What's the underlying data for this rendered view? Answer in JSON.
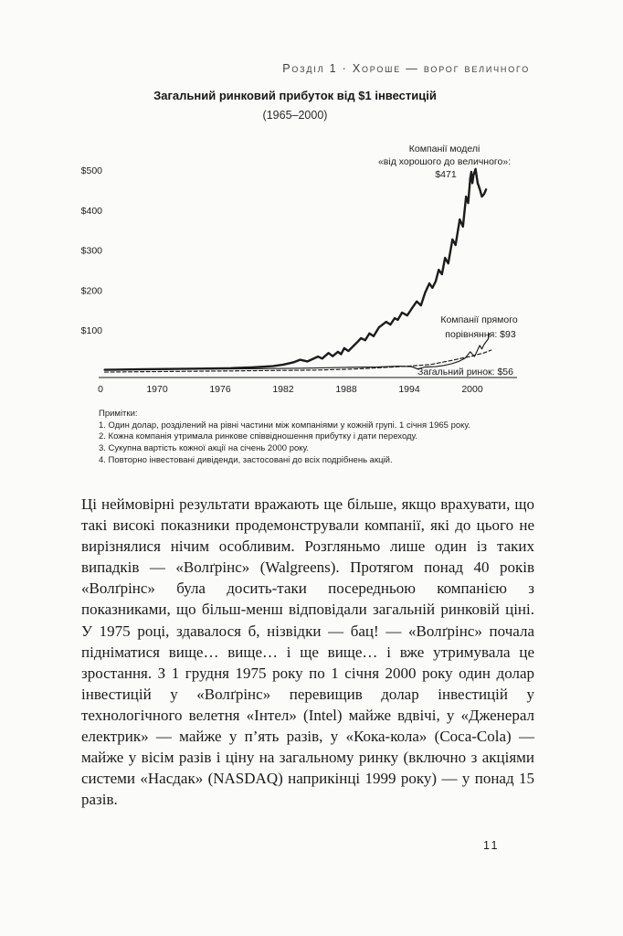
{
  "page": {
    "running_head": "Розділ 1 · Хороше — ворог величного",
    "page_number": "11"
  },
  "chart": {
    "title": "Загальний ринковий прибуток від $1 інвестицій",
    "subtitle": "(1965–2000)",
    "y_ticks": [
      "$500",
      "$400",
      "$300",
      "$200",
      "$100"
    ],
    "x_ticks": [
      "0",
      "1970",
      "1976",
      "1982",
      "1988",
      "1994",
      "2000"
    ],
    "annotations": {
      "g2g_line1": "Компанії моделі",
      "g2g_line2": "«від хорошого до величного»:",
      "g2g_line3": "$471",
      "comparison_line1": "Компанії прямого",
      "comparison_line2": "порівняння: $93",
      "market_label": "Загальний ринок: $56"
    }
  },
  "chart_data": {
    "type": "line",
    "title": "Загальний ринковий прибуток від $1 інвестицій",
    "subtitle": "(1965–2000)",
    "xlabel": "",
    "ylabel": "",
    "xlim": [
      1965,
      2000
    ],
    "ylim": [
      0,
      500
    ],
    "grid": false,
    "legend_position": "inline annotations at line ends",
    "x_tick_labels": [
      "0",
      "1970",
      "1976",
      "1982",
      "1988",
      "1994",
      "2000"
    ],
    "y_tick_labels": [
      "$500",
      "$400",
      "$300",
      "$200",
      "$100"
    ],
    "end_values": {
      "good_to_great": 471,
      "direct_comparison": 93,
      "general_market": 56
    },
    "series": [
      {
        "name": "Компанії моделі «від хорошого до величного»",
        "style": "bold-solid",
        "end_value": 471,
        "points": [
          [
            1965,
            1
          ],
          [
            1968,
            2
          ],
          [
            1971,
            3
          ],
          [
            1974,
            4
          ],
          [
            1977,
            5
          ],
          [
            1979,
            7
          ],
          [
            1981,
            10
          ],
          [
            1982,
            14
          ],
          [
            1983,
            20
          ],
          [
            1983.6,
            26
          ],
          [
            1984.3,
            22
          ],
          [
            1985.3,
            34
          ],
          [
            1985.7,
            29
          ],
          [
            1986.3,
            43
          ],
          [
            1986.7,
            35
          ],
          [
            1987.2,
            46
          ],
          [
            1987.5,
            40
          ],
          [
            1987.8,
            55
          ],
          [
            1988.2,
            48
          ],
          [
            1989,
            69
          ],
          [
            1989.4,
            80
          ],
          [
            1989.8,
            75
          ],
          [
            1990.2,
            92
          ],
          [
            1990.6,
            85
          ],
          [
            1991.1,
            107
          ],
          [
            1991.8,
            121
          ],
          [
            1992.2,
            114
          ],
          [
            1992.6,
            130
          ],
          [
            1992.9,
            126
          ],
          [
            1993.3,
            144
          ],
          [
            1993.8,
            137
          ],
          [
            1994.2,
            153
          ],
          [
            1994.7,
            172
          ],
          [
            1995.1,
            162
          ],
          [
            1995.5,
            194
          ],
          [
            1995.9,
            217
          ],
          [
            1996.2,
            206
          ],
          [
            1996.5,
            222
          ],
          [
            1996.8,
            251
          ],
          [
            1997.1,
            240
          ],
          [
            1997.4,
            281
          ],
          [
            1997.7,
            267
          ],
          [
            1998.1,
            327
          ],
          [
            1998.4,
            313
          ],
          [
            1998.8,
            377
          ],
          [
            1999.1,
            359
          ],
          [
            1999.4,
            434
          ],
          [
            1999.6,
            418
          ],
          [
            1999.8,
            480
          ],
          [
            1999.9,
            496
          ],
          [
            2000,
            468
          ],
          [
            2000.1,
            487
          ],
          [
            2000.3,
            503
          ],
          [
            2000.5,
            468
          ],
          [
            2000.7,
            453
          ],
          [
            2000.9,
            434
          ],
          [
            2001.1,
            440
          ],
          [
            2001.3,
            452
          ]
        ]
      },
      {
        "name": "Компанії прямого порівняння",
        "style": "thin-solid",
        "end_value": 93,
        "points": [
          [
            1965,
            1
          ],
          [
            1970,
            2
          ],
          [
            1975,
            3
          ],
          [
            1980,
            4
          ],
          [
            1984,
            5
          ],
          [
            1988,
            7
          ],
          [
            1991,
            8
          ],
          [
            1993,
            10
          ],
          [
            1994.2,
            9
          ],
          [
            1994.8,
            3
          ],
          [
            1995.5,
            8
          ],
          [
            1996.5,
            9
          ],
          [
            1997.3,
            12
          ],
          [
            1998,
            16
          ],
          [
            1998.7,
            22
          ],
          [
            1999.3,
            30
          ],
          [
            1999.8,
            46
          ],
          [
            2000.2,
            34
          ],
          [
            2000.7,
            62
          ],
          [
            2000.9,
            53
          ],
          [
            2001.1,
            64
          ],
          [
            2001.3,
            71
          ],
          [
            2001.5,
            78
          ],
          [
            2001.6,
            91
          ]
        ]
      },
      {
        "name": "Загальний ринок",
        "style": "dashed",
        "end_value": 56,
        "points": [
          [
            1965,
            1
          ],
          [
            1969,
            2
          ],
          [
            1973,
            3
          ],
          [
            1977,
            4
          ],
          [
            1981,
            5
          ],
          [
            1985,
            6
          ],
          [
            1988,
            8
          ],
          [
            1990,
            10
          ],
          [
            1992,
            13
          ],
          [
            1994,
            16
          ],
          [
            1996,
            20
          ],
          [
            1997,
            25
          ],
          [
            1998,
            30
          ],
          [
            1999,
            36
          ],
          [
            2000,
            41
          ],
          [
            2000.5,
            45
          ],
          [
            2001,
            48
          ],
          [
            2001.4,
            52
          ],
          [
            2001.8,
            56
          ]
        ]
      }
    ]
  },
  "notes": {
    "heading": "Примітки:",
    "items": [
      "1. Один долар, розділений на рівні частини між компаніями у кожній групі. 1 січня 1965 року.",
      "2. Кожна компанія утримала ринкове співвідношення прибутку і дати переходу.",
      "3. Сукупна вартість кожної акції на січень 2000 року.",
      "4. Повторно інвестовані дивіденди, застосовані до всіх подрібнень акцій."
    ]
  },
  "body": {
    "paragraph": "Ці неймовірні результати вражають ще більше, якщо врахувати, що такі високі показники продемонстрували компанії, які до цього не вирізнялися нічим особливим. Розгляньмо лише один із таких випадків — «Волґрінс» (Walgreens). Протягом понад 40 років «Волґрінс» була досить-таки посередньою компанією з показниками, що більш-менш відповідали загальній ринковій ціні. У 1975 році, здавалося б, нізвідки — бац! — «Волґрінс» почала підніматися вище… вище… і ще вище… і вже утримувала це зростання. З 1 грудня 1975 року по 1 січня 2000 року один долар інвестицій у «Волґрінс» перевищив долар інвестицій у технологічного велетня «Інтел» (Intel) майже вдвічі, у «Дженерал електрик» — майже у п’ять разів, у «Кока-кола» (Coca-Cola) — майже у вісім разів і ціну на загальному ринку (включно з акціями системи «Насдак» (NASDAQ) наприкінці 1999 року) — у понад 15 разів."
  },
  "colors": {
    "ink": "#1b1b1b",
    "paper": "#fbfbf9"
  }
}
